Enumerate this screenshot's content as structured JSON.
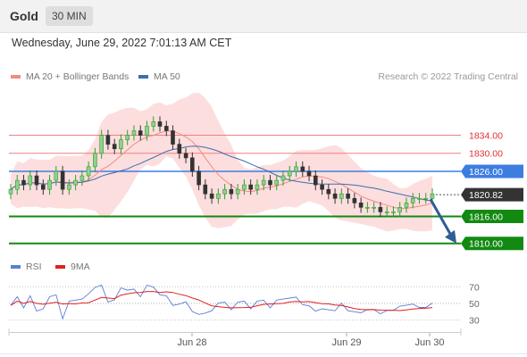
{
  "header": {
    "symbol": "Gold",
    "timeframe": "30 MIN",
    "datetime": "Wednesday, June 29, 2022 7:01:13 AM CET"
  },
  "legend": {
    "ma20": {
      "label": "MA 20 + Bollinger Bands",
      "color": "#f28b82"
    },
    "ma50": {
      "label": "MA 50",
      "color": "#3a6fb0"
    },
    "credit": "Research © 2022 Trading Central"
  },
  "rsi_legend": {
    "rsi": {
      "label": "RSI",
      "color": "#5b7fd6"
    },
    "ma9": {
      "label": "9MA",
      "color": "#e02020"
    }
  },
  "colors": {
    "resistance": "#f08080",
    "current": "#3d7de0",
    "support": "#128a12",
    "last": "#333333",
    "bollinger": "#fdd8d8",
    "up": "#2e9e2e",
    "down": "#333333",
    "arrow": "#2f5c96"
  },
  "chart_data": [
    {
      "type": "candlestick",
      "title": "Gold 30 MIN",
      "x_tick_labels": [
        "Jun 28",
        "Jun 29",
        "Jun 30"
      ],
      "ylim": [
        1805,
        1845
      ],
      "levels": [
        {
          "label": "1834.00",
          "value": 1834.0,
          "kind": "resistance"
        },
        {
          "label": "1830.00",
          "value": 1830.0,
          "kind": "resistance"
        },
        {
          "label": "1826.00",
          "value": 1826.0,
          "kind": "current-level"
        },
        {
          "label": "1820.82",
          "value": 1820.82,
          "kind": "last-price"
        },
        {
          "label": "1816.00",
          "value": 1816.0,
          "kind": "support"
        },
        {
          "label": "1810.00",
          "value": 1810.0,
          "kind": "support"
        }
      ],
      "forecast_arrow": {
        "from": 1821.0,
        "to": 1810.0,
        "direction": "down"
      },
      "series": [
        {
          "name": "MA 20 + Bollinger Bands",
          "values_summary": "moving average within shaded bands"
        },
        {
          "name": "MA 50",
          "values_summary": "slow moving average"
        }
      ],
      "candles_approx": [
        1822,
        1824,
        1823,
        1825,
        1823,
        1822,
        1824,
        1826,
        1822,
        1823,
        1824,
        1825,
        1827,
        1830,
        1834,
        1832,
        1831,
        1833,
        1834,
        1835,
        1834,
        1836,
        1837,
        1836,
        1835,
        1832,
        1830,
        1829,
        1826,
        1823,
        1821,
        1820,
        1821,
        1822,
        1821,
        1822,
        1823,
        1822,
        1823,
        1824,
        1823,
        1824,
        1825,
        1826,
        1827,
        1826,
        1825,
        1823,
        1822,
        1821,
        1820,
        1821,
        1820,
        1819,
        1818,
        1818,
        1818,
        1817,
        1817,
        1817,
        1818,
        1819,
        1820,
        1820,
        1820,
        1821
      ]
    },
    {
      "type": "line",
      "title": "RSI",
      "ylim": [
        20,
        80
      ],
      "y_tick_labels": [
        "70",
        "50",
        "30"
      ],
      "series": [
        {
          "name": "RSI",
          "values_summary": "oscillates 30-70"
        },
        {
          "name": "9MA",
          "values_summary": "smoothed RSI"
        }
      ]
    }
  ]
}
